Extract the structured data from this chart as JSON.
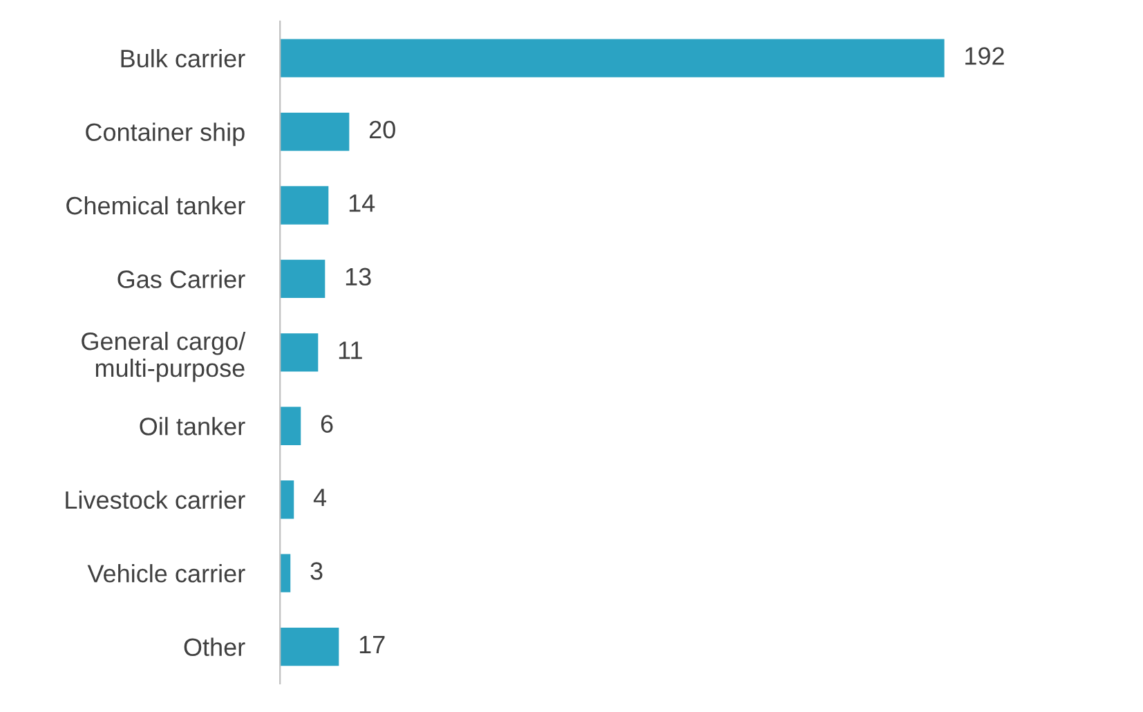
{
  "chart_data": {
    "type": "bar",
    "orientation": "horizontal",
    "categories": [
      "Bulk carrier",
      "Container ship",
      "Chemical tanker",
      "Gas Carrier",
      "General cargo/\nmulti-purpose",
      "Oil tanker",
      "Livestock carrier",
      "Vehicle carrier",
      "Other"
    ],
    "values": [
      192,
      20,
      14,
      13,
      11,
      6,
      4,
      3,
      17
    ],
    "color": "#2ba3c3",
    "data_labels": true,
    "grid": false,
    "legend": false
  }
}
